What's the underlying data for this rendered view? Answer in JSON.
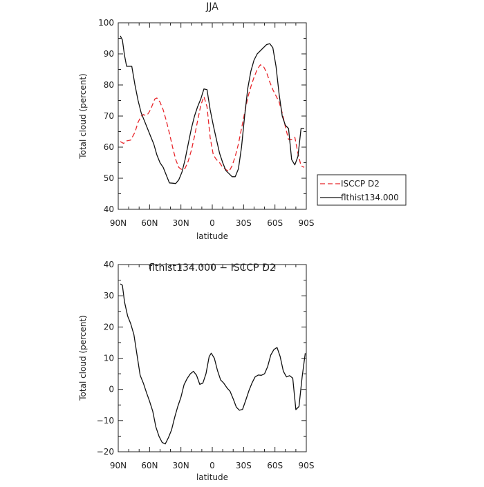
{
  "chart_data": [
    {
      "type": "line",
      "title": "JJA",
      "xlabel": "latitude",
      "ylabel": "Total cloud (percent)",
      "xlim": [
        90,
        -90
      ],
      "ylim": [
        40,
        100
      ],
      "x_ticks": [
        {
          "value": 90,
          "label": "90N"
        },
        {
          "value": 60,
          "label": "60N"
        },
        {
          "value": 30,
          "label": "30N"
        },
        {
          "value": 0,
          "label": "0"
        },
        {
          "value": -30,
          "label": "30S"
        },
        {
          "value": -60,
          "label": "60S"
        },
        {
          "value": -90,
          "label": "90S"
        }
      ],
      "y_ticks": [
        {
          "value": 40,
          "label": "40"
        },
        {
          "value": 50,
          "label": "50"
        },
        {
          "value": 60,
          "label": "60"
        },
        {
          "value": 70,
          "label": "70"
        },
        {
          "value": 80,
          "label": "80"
        },
        {
          "value": 90,
          "label": "90"
        },
        {
          "value": 100,
          "label": "100"
        }
      ],
      "legend": "right",
      "series": [
        {
          "name": "ISCCP D2",
          "color": "#e8262b",
          "dash": "dashed",
          "x": [
            88,
            85,
            82,
            78,
            74,
            71,
            68,
            66,
            64,
            62,
            60,
            58,
            55,
            53,
            50,
            47,
            44,
            41,
            38,
            35,
            32,
            29,
            26,
            23,
            20,
            17,
            14,
            11,
            8,
            5,
            2,
            -1,
            -4,
            -7,
            -10,
            -13,
            -16,
            -19,
            -22,
            -25,
            -28,
            -31,
            -34,
            -37,
            -40,
            -43,
            -46,
            -49,
            -52,
            -55,
            -58,
            -61,
            -64,
            -67,
            -70,
            -73,
            -76,
            -79,
            -82,
            -85,
            -88
          ],
          "y": [
            61.8,
            61.2,
            62,
            62.3,
            64.8,
            68,
            70,
            70.5,
            70.2,
            70.5,
            71.5,
            73,
            75.5,
            75.8,
            74.5,
            72,
            68.5,
            64.5,
            60,
            56,
            53.5,
            52.7,
            53.2,
            55.5,
            59,
            63.5,
            68.5,
            73.5,
            76.3,
            73,
            63,
            57.5,
            56,
            55,
            53.5,
            52.8,
            52.2,
            54,
            57,
            61,
            66,
            71,
            76,
            79.5,
            82.5,
            85,
            86.5,
            86,
            84,
            81,
            78.5,
            76.5,
            74.5,
            71,
            66.5,
            62.5,
            62.5,
            63.2,
            58,
            54,
            53.5
          ]
        },
        {
          "name": "flthist134.000",
          "color": "#111111",
          "dash": "solid",
          "x": [
            88,
            86,
            84,
            82,
            80,
            77,
            74,
            71,
            68,
            65,
            62,
            59,
            56,
            53,
            50,
            47,
            44,
            41,
            38,
            35,
            32,
            29,
            26,
            23,
            20,
            17,
            14,
            11,
            8,
            5,
            2,
            -1,
            -4,
            -7,
            -10,
            -13,
            -16,
            -19,
            -22,
            -25,
            -28,
            -31,
            -34,
            -37,
            -40,
            -43,
            -46,
            -49,
            -52,
            -55,
            -58,
            -61,
            -64,
            -67,
            -70,
            -73,
            -76,
            -79,
            -82,
            -85,
            -88
          ],
          "y": [
            95.8,
            94.5,
            89.5,
            86,
            86,
            86,
            80,
            75,
            71,
            68.5,
            66,
            63.5,
            61,
            57.5,
            55,
            53.5,
            51,
            48.5,
            48.4,
            48.3,
            49.5,
            52,
            56,
            61,
            66,
            70,
            73,
            75.5,
            78.7,
            78.5,
            72,
            67,
            62.5,
            58,
            55,
            52.5,
            51.5,
            50.5,
            50.5,
            53,
            60,
            70,
            79,
            84.5,
            88,
            90,
            91,
            92,
            93,
            93.3,
            92,
            86,
            77,
            70,
            67,
            66,
            56,
            54.3,
            57,
            66,
            66
          ]
        }
      ]
    },
    {
      "type": "line",
      "title": "flthist134.000 − ISCCP D2",
      "xlabel": "latitude",
      "ylabel": "Total cloud (percent)",
      "xlim": [
        90,
        -90
      ],
      "ylim": [
        -20,
        40
      ],
      "x_ticks": [
        {
          "value": 90,
          "label": "90N"
        },
        {
          "value": 60,
          "label": "60N"
        },
        {
          "value": 30,
          "label": "30N"
        },
        {
          "value": 0,
          "label": "0"
        },
        {
          "value": -30,
          "label": "30S"
        },
        {
          "value": -60,
          "label": "60S"
        },
        {
          "value": -90,
          "label": "90S"
        }
      ],
      "y_ticks": [
        {
          "value": -20,
          "label": "−20"
        },
        {
          "value": -10,
          "label": "−10"
        },
        {
          "value": 0,
          "label": "0"
        },
        {
          "value": 10,
          "label": "10"
        },
        {
          "value": 20,
          "label": "20"
        },
        {
          "value": 30,
          "label": "30"
        },
        {
          "value": 40,
          "label": "40"
        }
      ],
      "series": [
        {
          "color": "#111111",
          "dash": "solid",
          "x": [
            88,
            86,
            84,
            81,
            78,
            75,
            72,
            69,
            66,
            63,
            60,
            57,
            54,
            51,
            48,
            45,
            42,
            39,
            36,
            33,
            30,
            27,
            24,
            21,
            18,
            15,
            12,
            9,
            6,
            3,
            1,
            -2,
            -5,
            -8,
            -11,
            -14,
            -17,
            -20,
            -23,
            -26,
            -29,
            -32,
            -35,
            -38,
            -41,
            -44,
            -47,
            -50,
            -53,
            -56,
            -59,
            -62,
            -65,
            -68,
            -71,
            -74,
            -77,
            -80,
            -83,
            -86,
            -89
          ],
          "y": [
            33.8,
            33.4,
            28,
            23.5,
            21,
            17.5,
            11,
            4.5,
            2,
            -1,
            -3.8,
            -7,
            -12,
            -15,
            -17,
            -17.5,
            -15.5,
            -13,
            -9,
            -5.5,
            -2.5,
            1.5,
            3.5,
            5,
            5.8,
            4.5,
            1.6,
            2,
            5,
            10.5,
            11.6,
            10,
            6,
            3,
            2,
            0.5,
            -0.6,
            -3,
            -5.7,
            -6.7,
            -6.4,
            -3.5,
            -0.5,
            2,
            4,
            4.6,
            4.5,
            5,
            7.3,
            11,
            12.8,
            13.4,
            10.5,
            5.8,
            4,
            4.4,
            3.6,
            -6.5,
            -5.5,
            4,
            11.6
          ]
        }
      ]
    }
  ]
}
